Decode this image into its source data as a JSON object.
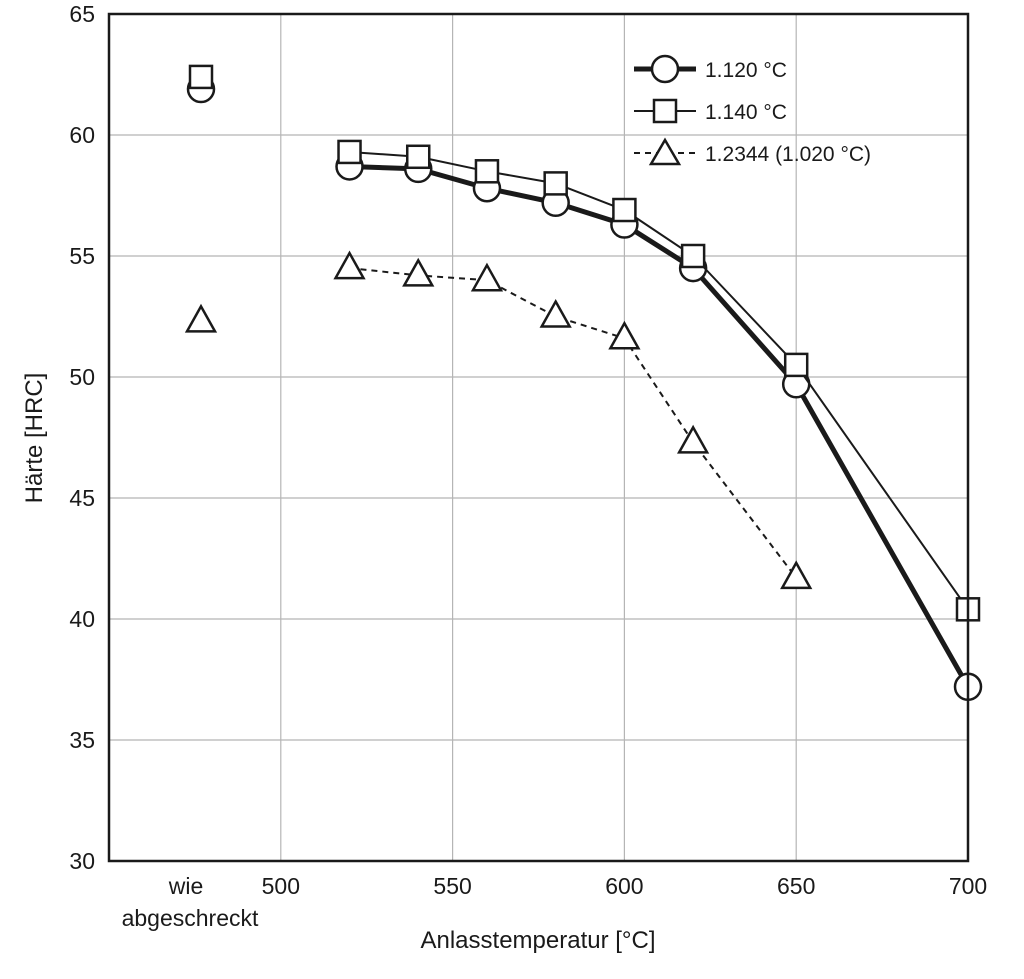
{
  "chart_data": {
    "type": "line",
    "xlabel": "Anlasstemperatur [°C]",
    "ylabel": "Härte [HRC]",
    "x_ticks": [
      500,
      550,
      600,
      650,
      700
    ],
    "x_extra_tick": [
      "wie",
      "abgeschreckt"
    ],
    "y_ticks": [
      30,
      35,
      40,
      45,
      50,
      55,
      60,
      65
    ],
    "xlim": [
      450,
      700
    ],
    "ylim": [
      30,
      65
    ],
    "grid": true,
    "legend_position": "top-right",
    "series": [
      {
        "name": "1.120 °C",
        "marker": "circle",
        "line": "thick",
        "as_quenched": 61.9,
        "x": [
          520,
          540,
          560,
          580,
          600,
          620,
          650,
          700
        ],
        "values": [
          58.7,
          58.6,
          57.8,
          57.2,
          56.3,
          54.5,
          49.7,
          37.2
        ]
      },
      {
        "name": "1.140 °C",
        "marker": "square",
        "line": "thin",
        "as_quenched": 62.4,
        "x": [
          520,
          540,
          560,
          580,
          600,
          620,
          650,
          700
        ],
        "values": [
          59.3,
          59.1,
          58.5,
          58.0,
          56.9,
          55.0,
          50.5,
          40.4
        ]
      },
      {
        "name": "1.2344 (1.020 °C)",
        "marker": "triangle",
        "line": "dashed",
        "as_quenched": 52.3,
        "x": [
          520,
          540,
          560,
          580,
          600,
          620,
          650
        ],
        "values": [
          54.5,
          54.2,
          54.0,
          52.5,
          51.6,
          47.3,
          41.7
        ]
      }
    ]
  }
}
